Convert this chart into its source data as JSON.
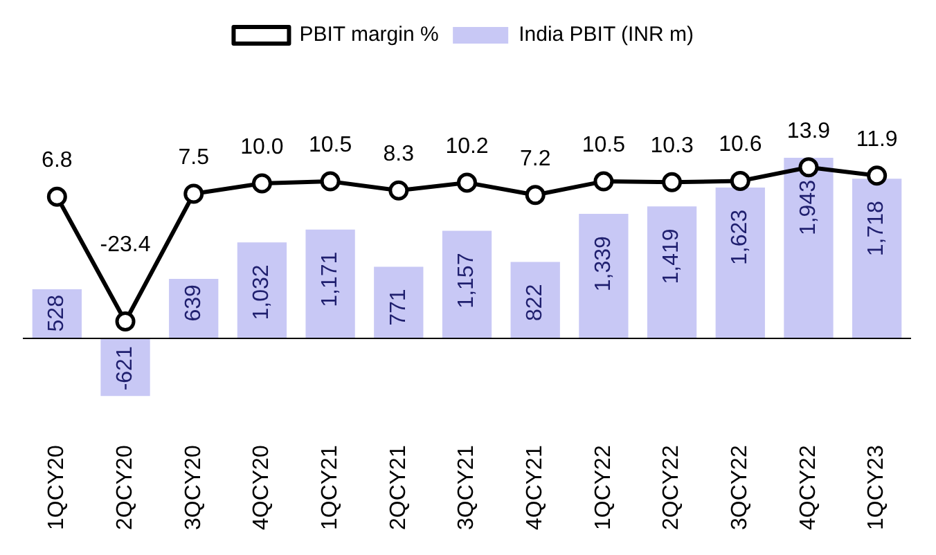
{
  "chart_data": {
    "type": "bar",
    "categories": [
      "1QCY20",
      "2QCY20",
      "3QCY20",
      "4QCY20",
      "1QCY21",
      "2QCY21",
      "3QCY21",
      "4QCY21",
      "1QCY22",
      "2QCY22",
      "3QCY22",
      "4QCY22",
      "1QCY23"
    ],
    "series": [
      {
        "name": "India PBIT (INR m)",
        "color": "#c8c8f5",
        "values": [
          528,
          -621,
          639,
          1032,
          1171,
          771,
          1157,
          822,
          1339,
          1419,
          1623,
          1943,
          1718
        ],
        "value_labels": [
          "528",
          "-621",
          "639",
          "1,032",
          "1,171",
          "771",
          "1,157",
          "822",
          "1,339",
          "1,419",
          "1,623",
          "1,943",
          "1,718"
        ]
      },
      {
        "name": "PBIT margin %",
        "type": "line",
        "axis": "y2",
        "color": "#000000",
        "values": [
          6.8,
          -23.4,
          7.5,
          10.0,
          10.5,
          8.3,
          10.2,
          7.2,
          10.5,
          10.3,
          10.6,
          13.9,
          11.9
        ],
        "value_labels": [
          "6.8",
          "-23.4",
          "7.5",
          "10.0",
          "10.5",
          "8.3",
          "10.2",
          "7.2",
          "10.5",
          "10.3",
          "10.6",
          "13.9",
          "11.9"
        ]
      }
    ],
    "legend": "top",
    "marker": "circle",
    "grid": false,
    "tick_labels": "x"
  }
}
